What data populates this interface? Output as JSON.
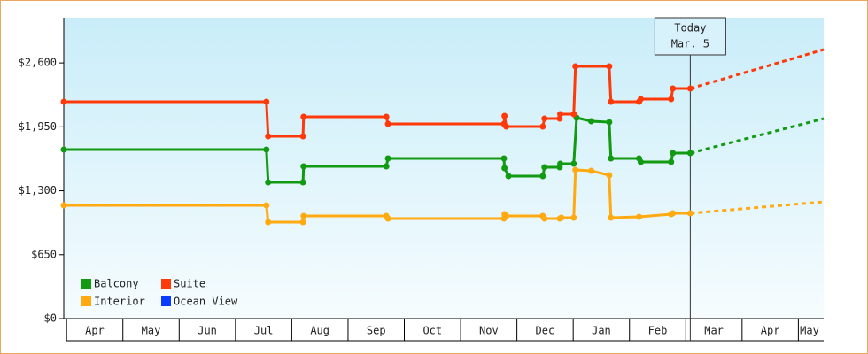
{
  "chart_data": {
    "type": "line",
    "xlim": [
      -0.05,
      13.45
    ],
    "xticks": [
      {
        "value": 0,
        "label": "Apr"
      },
      {
        "value": 1,
        "label": "May"
      },
      {
        "value": 2,
        "label": "Jun"
      },
      {
        "value": 3,
        "label": "Jul"
      },
      {
        "value": 4,
        "label": "Aug"
      },
      {
        "value": 5,
        "label": "Sep"
      },
      {
        "value": 6,
        "label": "Oct"
      },
      {
        "value": 7,
        "label": "Nov"
      },
      {
        "value": 8,
        "label": "Dec"
      },
      {
        "value": 9,
        "label": "Jan"
      },
      {
        "value": 10,
        "label": "Feb"
      },
      {
        "value": 11,
        "label": "Mar"
      },
      {
        "value": 12,
        "label": "Apr"
      },
      {
        "value": 13,
        "label": "May"
      }
    ],
    "ylim": [
      0,
      3060
    ],
    "yticks": [
      {
        "value": 0,
        "label": "$0"
      },
      {
        "value": 650,
        "label": "$650"
      },
      {
        "value": 1300,
        "label": "$1,300"
      },
      {
        "value": 1950,
        "label": "$1,950"
      },
      {
        "value": 2600,
        "label": "$2,600"
      }
    ],
    "today": {
      "x": 11.08,
      "title": "Today",
      "date": "Mar. 5"
    },
    "legend": "lower left",
    "series": [
      {
        "name": "Balcony",
        "color": "#139a13",
        "x": [
          -0.05,
          3.55,
          3.58,
          4.2,
          4.21,
          5.68,
          5.71,
          7.77,
          7.78,
          7.85,
          8.46,
          8.49,
          8.76,
          8.77,
          9.01,
          9.06,
          9.32,
          9.64,
          9.67,
          10.17,
          10.2,
          10.74,
          10.77,
          11.08
        ],
        "values": [
          1719,
          1719,
          1386,
          1386,
          1548,
          1548,
          1629,
          1629,
          1530,
          1449,
          1449,
          1539,
          1539,
          1575,
          1575,
          2043,
          2007,
          1998,
          1629,
          1629,
          1593,
          1593,
          1683,
          1683
        ],
        "projection": {
          "x": [
            11.08,
            13.45
          ],
          "values": [
            1683,
            2034
          ]
        }
      },
      {
        "name": "Suite",
        "color": "#ff3a0a",
        "x": [
          -0.05,
          3.55,
          3.58,
          4.2,
          4.21,
          5.68,
          5.71,
          7.77,
          7.78,
          7.81,
          8.46,
          8.49,
          8.76,
          8.77,
          9.01,
          9.04,
          9.64,
          9.67,
          10.17,
          10.2,
          10.74,
          10.77,
          11.08
        ],
        "values": [
          2205,
          2205,
          1854,
          1854,
          2052,
          2052,
          1980,
          1980,
          2061,
          1953,
          1953,
          2034,
          2034,
          2079,
          2079,
          2565,
          2565,
          2205,
          2205,
          2232,
          2232,
          2340,
          2340
        ],
        "projection": {
          "x": [
            11.08,
            13.45
          ],
          "values": [
            2340,
            2736
          ]
        }
      },
      {
        "name": "Interior",
        "color": "#ffaa11",
        "x": [
          -0.05,
          3.55,
          3.58,
          4.2,
          4.21,
          5.68,
          5.71,
          7.77,
          7.78,
          7.81,
          8.46,
          8.49,
          8.76,
          8.79,
          9.01,
          9.04,
          9.32,
          9.64,
          9.67,
          10.17,
          10.74,
          10.77,
          11.08
        ],
        "values": [
          1152,
          1152,
          981,
          981,
          1044,
          1044,
          1017,
          1017,
          1062,
          1044,
          1044,
          1017,
          1017,
          1026,
          1026,
          1512,
          1503,
          1458,
          1026,
          1035,
          1062,
          1071,
          1071
        ],
        "projection": {
          "x": [
            11.08,
            13.45
          ],
          "values": [
            1071,
            1188
          ]
        }
      },
      {
        "name": "Ocean View",
        "color": "#0a3cff",
        "x": [],
        "values": []
      }
    ]
  }
}
